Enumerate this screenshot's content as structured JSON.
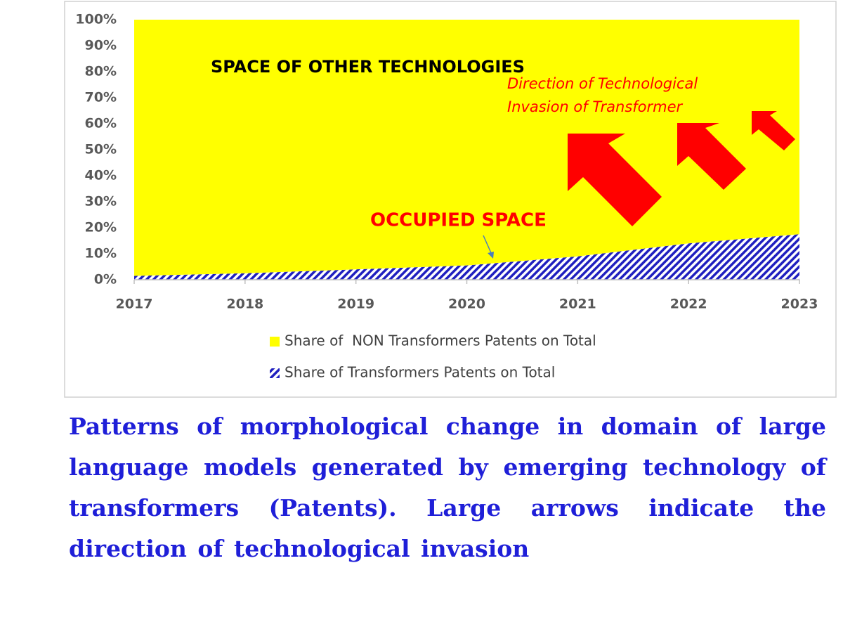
{
  "chart_data": {
    "type": "area",
    "stacked": true,
    "x": [
      2017,
      2018,
      2019,
      2020,
      2021,
      2022,
      2023
    ],
    "xlim": [
      2017,
      2023
    ],
    "xticks": [
      2017,
      2018,
      2019,
      2020,
      2021,
      2022,
      2023
    ],
    "ylim": [
      0,
      100
    ],
    "yticks": [
      {
        "value": 0,
        "label": "0%"
      },
      {
        "value": 10,
        "label": "10%"
      },
      {
        "value": 20,
        "label": "20%"
      },
      {
        "value": 30,
        "label": "30%"
      },
      {
        "value": 40,
        "label": "40%"
      },
      {
        "value": 50,
        "label": "50%"
      },
      {
        "value": 60,
        "label": "60%"
      },
      {
        "value": 70,
        "label": "70%"
      },
      {
        "value": 80,
        "label": "80%"
      },
      {
        "value": 90,
        "label": "90%"
      },
      {
        "value": 100,
        "label": "100%"
      }
    ],
    "series": [
      {
        "name": "Share of  NON Transformers Patents on Total",
        "color": "#ffff00",
        "values": [
          98.5,
          97.5,
          96,
          94.5,
          91,
          86,
          82.5
        ]
      },
      {
        "name": "Share of Transformers Patents on Total",
        "color": "#1f1fbf",
        "hatch": true,
        "values": [
          1.5,
          2.5,
          4,
          5.5,
          9,
          14,
          17.5
        ]
      }
    ],
    "annotations": [
      "SPACE OF OTHER TECHNOLOGIES",
      "Direction of Technological",
      "Invasion of Transformer",
      "OCCUPIED SPACE"
    ],
    "caption": "Patterns of morphological change in domain of large language models generated by emerging technology of transformers (Patents). Large arrows indicate the direction of technological invasion"
  }
}
